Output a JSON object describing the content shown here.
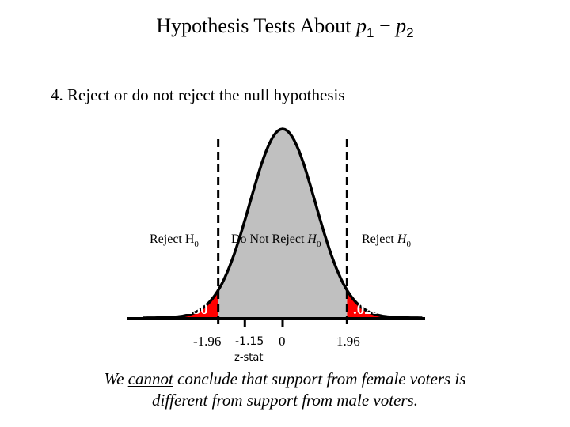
{
  "title": {
    "prefix": "Hypothesis Tests About",
    "p1": "p",
    "sub1": "1",
    "minus": "−",
    "p2": "p",
    "sub2": "2"
  },
  "step": "4.  Reject or do not reject the null hypothesis",
  "regions": {
    "reject_left": {
      "text": "Reject H",
      "sub": "0"
    },
    "do_not_reject": {
      "text": "Do Not Reject ",
      "h": "H",
      "sub": "0"
    },
    "reject_right": {
      "text": "Reject ",
      "h": "H",
      "sub": "0"
    }
  },
  "tail_area_left": ".0250",
  "tail_area_right": ".0250",
  "axis_labels": {
    "neg_crit": "-1.96",
    "zstat": "-1.15",
    "zero": "0",
    "pos_crit": "1.96",
    "zstat_caption": "z-stat"
  },
  "distribution": {
    "critical_value": 1.96,
    "z_stat": -1.15,
    "tail_probability": 0.025
  },
  "colors": {
    "reject": "#ff0000",
    "accept": "#c0c0c0",
    "curve": "#000000"
  },
  "conclusion": {
    "part1": "We ",
    "emphasis": "cannot",
    "part2": " conclude that support from female voters is",
    "line2": "different from support from male voters."
  }
}
